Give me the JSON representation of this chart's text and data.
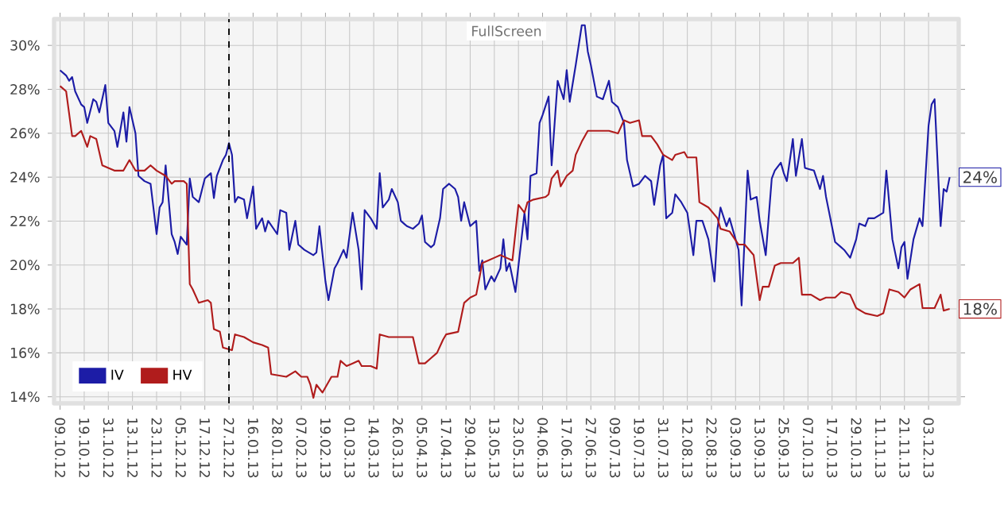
{
  "chart_data": {
    "type": "line",
    "annotations": [
      "FullScreen",
      {
        "text": "24%",
        "y": 24
      },
      {
        "text": "18%",
        "y": 18
      }
    ],
    "categories": [
      "09.10.12",
      null,
      null,
      null,
      null,
      null,
      null,
      null,
      "19.10.12",
      null,
      null,
      null,
      null,
      null,
      null,
      null,
      "31.10.12",
      null,
      null,
      null,
      null,
      null,
      null,
      null,
      "13.11.12",
      null,
      null,
      null,
      null,
      null,
      null,
      null,
      "23.11.12",
      null,
      null,
      null,
      null,
      null,
      null,
      null,
      "05.12.12",
      null,
      null,
      null,
      null,
      null,
      null,
      null,
      "17.12.12",
      null,
      null,
      null,
      null,
      null,
      null,
      null,
      "27.12.12",
      null,
      null,
      null,
      null,
      null,
      null,
      null,
      "16.01.13",
      null,
      null,
      null,
      null,
      null,
      null,
      null,
      "28.01.13",
      null,
      null,
      null,
      null,
      null,
      null,
      null,
      "07.02.13",
      null,
      null,
      null,
      null,
      null,
      null,
      null,
      "19.02.13",
      null,
      null,
      null,
      null,
      null,
      null,
      null,
      "01.03.13",
      null,
      null,
      null,
      null,
      null,
      null,
      null,
      "14.03.13",
      null,
      null,
      null,
      null,
      null,
      null,
      null,
      "26.03.13",
      null,
      null,
      null,
      null,
      null,
      null,
      null,
      "05.04.13",
      null,
      null,
      null,
      null,
      null,
      null,
      null,
      "17.04.13",
      null,
      null,
      null,
      null,
      null,
      null,
      null,
      "29.04.13",
      null,
      null,
      null,
      null,
      null,
      null,
      null,
      "13.05.13",
      null,
      null,
      null,
      null,
      null,
      null,
      null,
      "23.05.13",
      null,
      null,
      null,
      null,
      null,
      null,
      null,
      "04.06.13",
      null,
      null,
      null,
      null,
      null,
      null,
      null,
      "17.06.13",
      null,
      null,
      null,
      null,
      null,
      null,
      null,
      "27.06.13",
      null,
      null,
      null,
      null,
      null,
      null,
      null,
      "09.07.13",
      null,
      null,
      null,
      null,
      null,
      null,
      null,
      "19.07.13",
      null,
      null,
      null,
      null,
      null,
      null,
      null,
      "31.07.13",
      null,
      null,
      null,
      null,
      null,
      null,
      null,
      "12.08.13",
      null,
      null,
      null,
      null,
      null,
      null,
      null,
      "22.08.13",
      null,
      null,
      null,
      null,
      null,
      null,
      null,
      "03.09.13",
      null,
      null,
      null,
      null,
      null,
      null,
      null,
      "13.09.13",
      null,
      null,
      null,
      null,
      null,
      null,
      null,
      "25.09.13",
      null,
      null,
      null,
      null,
      null,
      null,
      null,
      "07.10.13",
      null,
      null,
      null,
      null,
      null,
      null,
      null,
      "17.10.13",
      null,
      null,
      null,
      null,
      null,
      null,
      null,
      "29.10.13",
      null,
      null,
      null,
      null,
      null,
      null,
      null,
      "11.11.13",
      null,
      null,
      null,
      null,
      null,
      null,
      null,
      "21.11.13",
      null,
      null,
      null,
      null,
      null,
      null,
      null,
      "03.12.13",
      null,
      null,
      null,
      null,
      null,
      null,
      null
    ],
    "ylim": [
      13.7,
      31.2
    ],
    "yticks": [
      {
        "value": 14,
        "label": "14%"
      },
      {
        "value": 16,
        "label": "16%"
      },
      {
        "value": 18,
        "label": "18%"
      },
      {
        "value": 20,
        "label": "20%"
      },
      {
        "value": 22,
        "label": "22%"
      },
      {
        "value": 24,
        "label": "24%"
      },
      {
        "value": 26,
        "label": "26%"
      },
      {
        "value": 28,
        "label": "28%"
      },
      {
        "value": 30,
        "label": "30%"
      }
    ],
    "grid": true,
    "legend": "bottom left",
    "ref_lines": [
      {
        "axis": "x",
        "value": "27.12.12",
        "color": "#000000",
        "line_style": "dashed"
      }
    ],
    "series": [
      {
        "name": "IV",
        "color": "#1c1ca6",
        "values": [
          28.87,
          null,
          28.63,
          28.39,
          28.56,
          27.91,
          null,
          27.31,
          27.19,
          26.47,
          null,
          27.55,
          27.43,
          26.95,
          null,
          28.2,
          26.47,
          null,
          26.11,
          25.38,
          null,
          26.95,
          25.62,
          27.19,
          null,
          25.99,
          24.06,
          null,
          23.82,
          null,
          23.7,
          null,
          21.41,
          22.62,
          22.86,
          24.54,
          null,
          21.41,
          21.05,
          20.5,
          21.29,
          null,
          20.93,
          23.94,
          23.1,
          null,
          22.86,
          null,
          23.94,
          null,
          24.18,
          23.05,
          24.06,
          null,
          24.78,
          25.02,
          25.55,
          25.02,
          22.86,
          23.1,
          null,
          22.98,
          22.13,
          null,
          23.58,
          21.65,
          null,
          22.13,
          21.53,
          22.01,
          null,
          null,
          21.41,
          22.5,
          null,
          22.38,
          20.69,
          null,
          22.01,
          20.93,
          null,
          20.69,
          null,
          null,
          20.45,
          20.57,
          21.77,
          null,
          19.25,
          18.4,
          null,
          19.85,
          20.09,
          null,
          20.69,
          20.33,
          null,
          22.38,
          null,
          20.69,
          18.89,
          22.5,
          null,
          22.13,
          null,
          21.65,
          24.18,
          22.62,
          null,
          22.98,
          23.46,
          null,
          22.86,
          22.01,
          null,
          21.77,
          null,
          21.65,
          null,
          21.89,
          22.26,
          21.05,
          null,
          20.81,
          20.93,
          null,
          22.13,
          23.46,
          null,
          23.7,
          null,
          23.46,
          23.1,
          22.01,
          22.86,
          null,
          21.77,
          null,
          22.01,
          19.73,
          20.21,
          18.89,
          null,
          19.49,
          19.25,
          null,
          19.85,
          21.17,
          19.73,
          20.09,
          null,
          18.77,
          19.97,
          null,
          22.38,
          21.17,
          24.06,
          null,
          24.18,
          26.47,
          26.83,
          null,
          27.67,
          24.54,
          null,
          28.39,
          null,
          27.55,
          28.87,
          27.43,
          null,
          29.11,
          null,
          30.92,
          30.92,
          29.72,
          29.11,
          null,
          27.67,
          null,
          27.55,
          null,
          28.39,
          27.43,
          null,
          27.19,
          null,
          26.47,
          24.78,
          null,
          23.58,
          null,
          23.7,
          null,
          24.06,
          null,
          23.82,
          22.74,
          null,
          24.54,
          25.02,
          22.13,
          null,
          22.38,
          23.22,
          null,
          22.86,
          null,
          22.38,
          null,
          20.45,
          22.01,
          null,
          22.01,
          null,
          21.17,
          null,
          19.25,
          21.65,
          22.62,
          null,
          21.77,
          22.13,
          null,
          21.17,
          20.69,
          18.16,
          null,
          24.3,
          22.98,
          null,
          23.1,
          22.01,
          null,
          20.45,
          null,
          23.94,
          24.3,
          null,
          24.66,
          24.18,
          23.82,
          null,
          25.74,
          24.06,
          null,
          25.74,
          24.42,
          null,
          null,
          24.3,
          null,
          23.46,
          24.06,
          23.1,
          null,
          null,
          21.05,
          null,
          20.81,
          20.69,
          null,
          20.33,
          null,
          21.17,
          21.89,
          null,
          21.77,
          22.13,
          null,
          22.13,
          null,
          null,
          22.38,
          24.3,
          null,
          21.17,
          null,
          19.85,
          20.81,
          21.05,
          19.37,
          null,
          21.17,
          null,
          22.13,
          21.77,
          null,
          26.35,
          27.31,
          27.55,
          null,
          21.77,
          23.46,
          23.34,
          24.0
        ]
      },
      {
        "name": "HV",
        "color": "#b01c1c",
        "values": [
          28.15,
          null,
          27.91,
          null,
          25.87,
          25.87,
          null,
          26.11,
          null,
          25.38,
          25.87,
          null,
          25.74,
          null,
          24.54,
          null,
          24.42,
          null,
          24.3,
          null,
          null,
          24.3,
          null,
          24.78,
          null,
          24.3,
          null,
          null,
          24.3,
          null,
          24.54,
          null,
          24.3,
          null,
          null,
          24.06,
          null,
          23.7,
          23.82,
          null,
          null,
          23.82,
          23.7,
          19.13,
          18.89,
          null,
          18.28,
          null,
          null,
          18.4,
          18.28,
          17.08,
          null,
          16.96,
          16.24,
          null,
          null,
          16.12,
          16.84,
          null,
          null,
          16.72,
          null,
          null,
          16.48,
          null,
          null,
          16.36,
          null,
          16.24,
          15.03,
          null,
          null,
          null,
          null,
          14.91,
          null,
          null,
          15.16,
          null,
          14.91,
          null,
          14.91,
          14.55,
          13.95,
          14.55,
          null,
          14.19,
          null,
          null,
          14.91,
          null,
          14.91,
          15.64,
          null,
          15.4,
          null,
          15.52,
          null,
          15.64,
          15.4,
          null,
          null,
          15.4,
          null,
          15.28,
          16.84,
          null,
          null,
          16.72,
          null,
          null,
          null,
          16.72,
          null,
          null,
          null,
          16.72,
          null,
          15.52,
          null,
          15.52,
          null,
          15.76,
          null,
          16.0,
          null,
          16.6,
          16.84,
          null,
          null,
          null,
          16.96,
          null,
          18.28,
          null,
          18.52,
          null,
          18.65,
          null,
          20.09,
          null,
          20.21,
          null,
          20.33,
          null,
          20.45,
          null,
          20.33,
          null,
          20.21,
          null,
          22.74,
          null,
          22.38,
          22.86,
          null,
          22.98,
          null,
          null,
          null,
          23.1,
          23.22,
          23.94,
          null,
          24.3,
          23.58,
          null,
          24.06,
          null,
          24.3,
          25.02,
          null,
          25.62,
          null,
          26.11,
          null,
          null,
          26.11,
          null,
          null,
          null,
          26.11,
          null,
          null,
          25.99,
          null,
          26.59,
          null,
          26.47,
          null,
          null,
          26.59,
          25.87,
          null,
          null,
          25.87,
          null,
          25.5,
          null,
          25.02,
          null,
          null,
          24.78,
          25.02,
          null,
          null,
          25.14,
          24.9,
          null,
          null,
          24.9,
          22.86,
          null,
          null,
          22.62,
          null,
          null,
          22.13,
          21.65,
          null,
          null,
          21.53,
          null,
          null,
          20.93,
          null,
          20.93,
          null,
          null,
          20.45,
          null,
          18.4,
          19.01,
          null,
          19.01,
          null,
          19.97,
          null,
          20.09,
          null,
          null,
          null,
          20.09,
          null,
          20.33,
          18.65,
          null,
          null,
          18.65,
          null,
          null,
          18.4,
          null,
          18.52,
          null,
          null,
          18.52,
          null,
          18.77,
          null,
          null,
          18.65,
          null,
          18.04,
          null,
          null,
          17.8,
          null,
          null,
          null,
          17.68,
          null,
          17.8,
          null,
          18.89,
          null,
          null,
          18.77,
          null,
          18.52,
          null,
          18.89,
          null,
          null,
          19.13,
          18.04,
          null,
          null,
          null,
          18.04,
          null,
          18.65,
          17.92,
          null,
          18.0
        ]
      }
    ]
  }
}
